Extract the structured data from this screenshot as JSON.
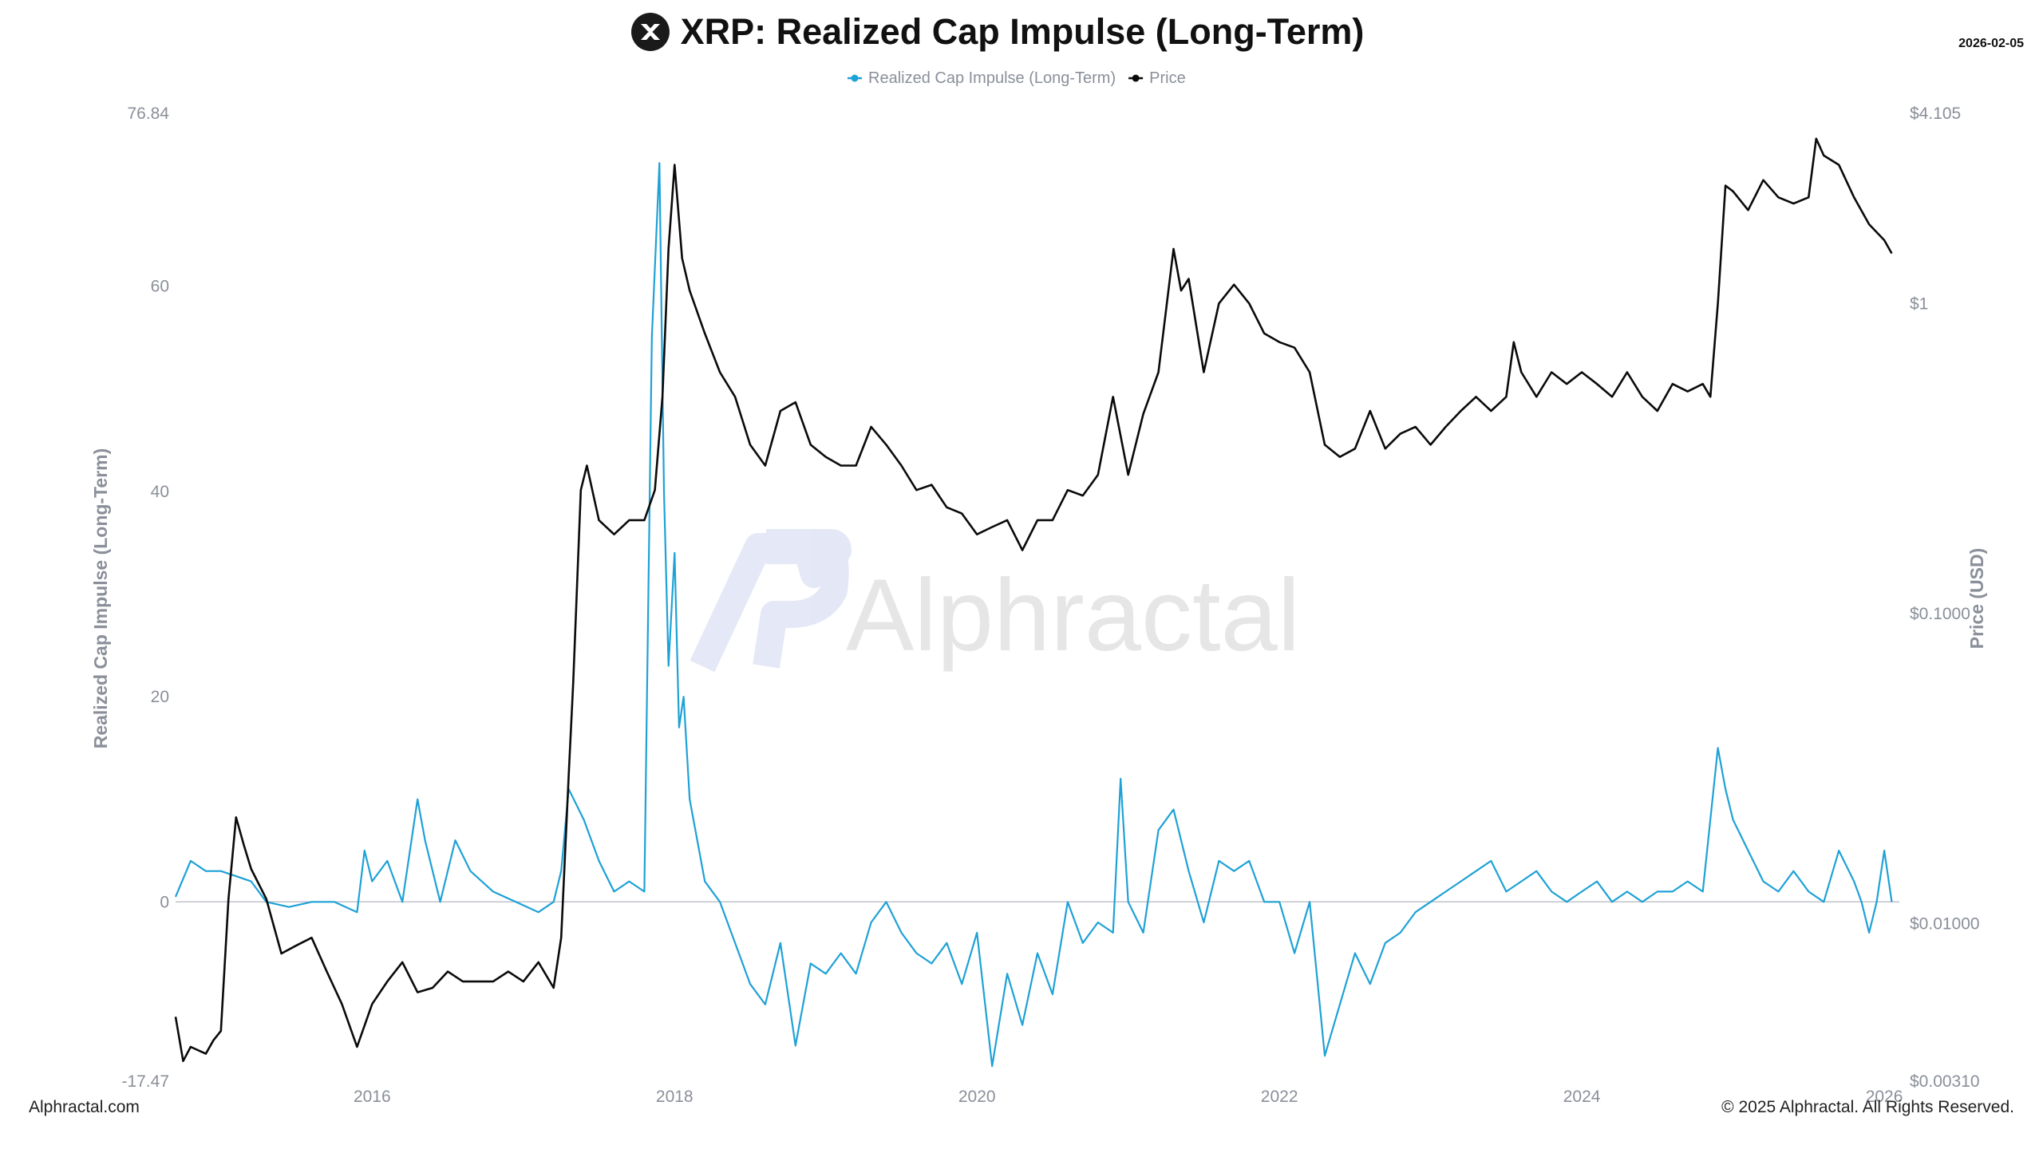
{
  "header": {
    "title": "XRP: Realized Cap Impulse (Long-Term)",
    "logo_icon": "xrp-logo-icon",
    "date": "2026-02-05"
  },
  "footer": {
    "left": "Alphractal.com",
    "right": "© 2025 Alphractal. All Rights Reserved."
  },
  "watermark": {
    "text": "Alphractal"
  },
  "colors": {
    "impulse": "#1ea1d6",
    "price": "#0a0a0a",
    "axis_text": "#8a8f99",
    "zero_line": "#bfc3c9"
  },
  "chart_data": {
    "type": "line",
    "title": "XRP: Realized Cap Impulse (Long-Term)",
    "legend_position": "top-center",
    "grid": false,
    "x_axis": {
      "ticks": [
        "2016",
        "2018",
        "2020",
        "2022",
        "2024",
        "2026"
      ],
      "range": [
        2014.7,
        2026.1
      ]
    },
    "y_left": {
      "label": "Realized Cap Impulse (Long-Term)",
      "ticks": [
        "76.84",
        "60",
        "40",
        "20",
        "0",
        "-17.47"
      ],
      "range": [
        -17.47,
        76.84
      ]
    },
    "y_right": {
      "label": "Price (USD)",
      "scale": "log",
      "ticks": [
        "$4.105",
        "$1",
        "$0.1000",
        "$0.01000",
        "$0.00310"
      ],
      "tick_values": [
        4.105,
        1,
        0.1,
        0.01,
        0.0031
      ],
      "range": [
        0.0031,
        4.105
      ]
    },
    "series": [
      {
        "name": "Realized Cap Impulse (Long-Term)",
        "axis": "left",
        "x": [
          2014.7,
          2014.8,
          2014.9,
          2015.0,
          2015.1,
          2015.2,
          2015.3,
          2015.45,
          2015.6,
          2015.75,
          2015.9,
          2015.95,
          2016.0,
          2016.1,
          2016.2,
          2016.3,
          2016.35,
          2016.45,
          2016.55,
          2016.65,
          2016.8,
          2016.95,
          2017.1,
          2017.2,
          2017.25,
          2017.3,
          2017.4,
          2017.5,
          2017.6,
          2017.7,
          2017.8,
          2017.85,
          2017.9,
          2017.93,
          2017.96,
          2018.0,
          2018.03,
          2018.06,
          2018.1,
          2018.15,
          2018.2,
          2018.3,
          2018.4,
          2018.5,
          2018.6,
          2018.7,
          2018.8,
          2018.9,
          2019.0,
          2019.1,
          2019.2,
          2019.3,
          2019.4,
          2019.5,
          2019.6,
          2019.7,
          2019.8,
          2019.9,
          2020.0,
          2020.1,
          2020.2,
          2020.3,
          2020.4,
          2020.5,
          2020.6,
          2020.7,
          2020.8,
          2020.9,
          2020.95,
          2021.0,
          2021.1,
          2021.2,
          2021.3,
          2021.4,
          2021.5,
          2021.6,
          2021.7,
          2021.8,
          2021.9,
          2022.0,
          2022.1,
          2022.2,
          2022.3,
          2022.4,
          2022.5,
          2022.6,
          2022.7,
          2022.8,
          2022.9,
          2023.0,
          2023.1,
          2023.2,
          2023.3,
          2023.4,
          2023.5,
          2023.6,
          2023.7,
          2023.8,
          2023.9,
          2024.0,
          2024.1,
          2024.2,
          2024.3,
          2024.4,
          2024.5,
          2024.6,
          2024.7,
          2024.8,
          2024.9,
          2024.95,
          2025.0,
          2025.1,
          2025.2,
          2025.3,
          2025.4,
          2025.5,
          2025.6,
          2025.7,
          2025.8,
          2025.85,
          2025.9,
          2025.95,
          2026.0,
          2026.05
        ],
        "y": [
          0.5,
          4,
          3,
          3,
          2.5,
          2,
          0,
          -0.5,
          0,
          0,
          -1,
          5,
          2,
          4,
          0,
          10,
          6,
          0,
          6,
          3,
          1,
          0,
          -1,
          0,
          3,
          11,
          8,
          4,
          1,
          2,
          1,
          55,
          72,
          40,
          23,
          34,
          17,
          20,
          10,
          6,
          2,
          0,
          -4,
          -8,
          -10,
          -4,
          -14,
          -6,
          -7,
          -5,
          -7,
          -2,
          0,
          -3,
          -5,
          -6,
          -4,
          -8,
          -3,
          -16,
          -7,
          -12,
          -5,
          -9,
          0,
          -4,
          -2,
          -3,
          12,
          0,
          -3,
          7,
          9,
          3,
          -2,
          4,
          3,
          4,
          0,
          0,
          -5,
          0,
          -15,
          -10,
          -5,
          -8,
          -4,
          -3,
          -1,
          0,
          1,
          2,
          3,
          4,
          1,
          2,
          3,
          1,
          0,
          1,
          2,
          0,
          1,
          0,
          1,
          1,
          2,
          1,
          15,
          11,
          8,
          5,
          2,
          1,
          3,
          1,
          0,
          5,
          2,
          0,
          -3,
          0,
          5,
          0
        ]
      },
      {
        "name": "Price",
        "axis": "right",
        "x": [
          2014.7,
          2014.75,
          2014.8,
          2014.9,
          2014.95,
          2015.0,
          2015.05,
          2015.1,
          2015.15,
          2015.2,
          2015.3,
          2015.4,
          2015.5,
          2015.6,
          2015.7,
          2015.8,
          2015.9,
          2016.0,
          2016.1,
          2016.2,
          2016.3,
          2016.4,
          2016.5,
          2016.6,
          2016.7,
          2016.8,
          2016.9,
          2017.0,
          2017.1,
          2017.2,
          2017.25,
          2017.3,
          2017.33,
          2017.38,
          2017.42,
          2017.5,
          2017.6,
          2017.7,
          2017.8,
          2017.87,
          2017.92,
          2017.96,
          2018.0,
          2018.05,
          2018.1,
          2018.2,
          2018.3,
          2018.4,
          2018.5,
          2018.6,
          2018.7,
          2018.8,
          2018.9,
          2019.0,
          2019.1,
          2019.2,
          2019.3,
          2019.4,
          2019.5,
          2019.6,
          2019.7,
          2019.8,
          2019.9,
          2020.0,
          2020.1,
          2020.2,
          2020.3,
          2020.4,
          2020.5,
          2020.6,
          2020.7,
          2020.8,
          2020.9,
          2021.0,
          2021.1,
          2021.2,
          2021.3,
          2021.35,
          2021.4,
          2021.5,
          2021.6,
          2021.7,
          2021.8,
          2021.9,
          2022.0,
          2022.1,
          2022.2,
          2022.3,
          2022.4,
          2022.5,
          2022.6,
          2022.7,
          2022.8,
          2022.9,
          2023.0,
          2023.1,
          2023.2,
          2023.3,
          2023.4,
          2023.5,
          2023.55,
          2023.6,
          2023.7,
          2023.8,
          2023.9,
          2024.0,
          2024.1,
          2024.2,
          2024.3,
          2024.4,
          2024.5,
          2024.6,
          2024.7,
          2024.8,
          2024.85,
          2024.9,
          2024.95,
          2025.0,
          2025.1,
          2025.2,
          2025.3,
          2025.4,
          2025.5,
          2025.55,
          2025.6,
          2025.7,
          2025.8,
          2025.9,
          2026.0,
          2026.05
        ],
        "y": [
          0.005,
          0.0036,
          0.004,
          0.0038,
          0.0042,
          0.0045,
          0.012,
          0.022,
          0.018,
          0.015,
          0.012,
          0.008,
          0.0085,
          0.009,
          0.007,
          0.0055,
          0.004,
          0.0055,
          0.0065,
          0.0075,
          0.006,
          0.0062,
          0.007,
          0.0065,
          0.0065,
          0.0065,
          0.007,
          0.0065,
          0.0075,
          0.0062,
          0.009,
          0.03,
          0.06,
          0.25,
          0.3,
          0.2,
          0.18,
          0.2,
          0.2,
          0.25,
          0.5,
          1.5,
          2.8,
          1.4,
          1.1,
          0.8,
          0.6,
          0.5,
          0.35,
          0.3,
          0.45,
          0.48,
          0.35,
          0.32,
          0.3,
          0.3,
          0.4,
          0.35,
          0.3,
          0.25,
          0.26,
          0.22,
          0.21,
          0.18,
          0.19,
          0.2,
          0.16,
          0.2,
          0.2,
          0.25,
          0.24,
          0.28,
          0.5,
          0.28,
          0.44,
          0.6,
          1.5,
          1.1,
          1.2,
          0.6,
          1.0,
          1.15,
          1.0,
          0.8,
          0.75,
          0.72,
          0.6,
          0.35,
          0.32,
          0.34,
          0.45,
          0.34,
          0.38,
          0.4,
          0.35,
          0.4,
          0.45,
          0.5,
          0.45,
          0.5,
          0.75,
          0.6,
          0.5,
          0.6,
          0.55,
          0.6,
          0.55,
          0.5,
          0.6,
          0.5,
          0.45,
          0.55,
          0.52,
          0.55,
          0.5,
          1.0,
          2.4,
          2.3,
          2.0,
          2.5,
          2.2,
          2.1,
          2.2,
          3.4,
          3.0,
          2.8,
          2.2,
          1.8,
          1.6,
          1.45
        ]
      }
    ]
  }
}
